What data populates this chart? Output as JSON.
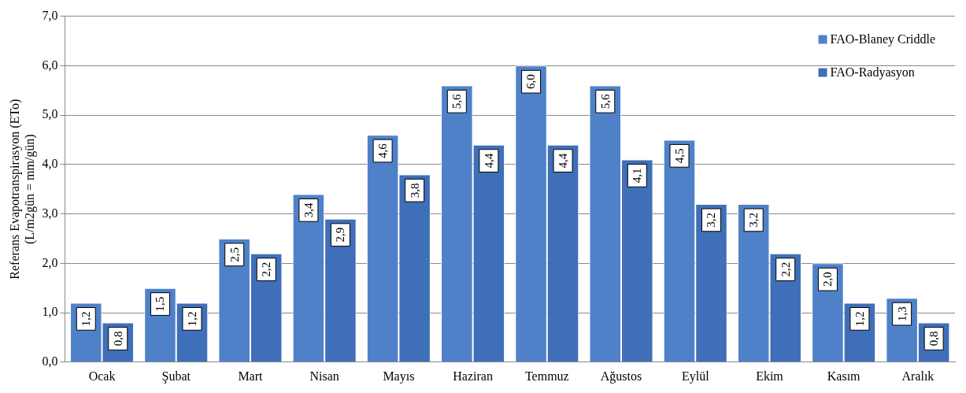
{
  "chart_data": {
    "type": "bar",
    "ylabel": "Referans Evapotranspirasyon (ETo)\n(L/m2gün = mm/gün)",
    "categories": [
      "Ocak",
      "Şubat",
      "Mart",
      "Nisan",
      "Mayıs",
      "Haziran",
      "Temmuz",
      "Ağustos",
      "Eylül",
      "Ekim",
      "Kasım",
      "Aralık"
    ],
    "series": [
      {
        "name": "FAO-Blaney Criddle",
        "color": "#4f81c9",
        "values": [
          1.2,
          1.5,
          2.5,
          3.4,
          4.6,
          5.6,
          6.0,
          5.6,
          4.5,
          3.2,
          2.0,
          1.3
        ],
        "value_labels": [
          "1,2",
          "1,5",
          "2,5",
          "3,4",
          "4,6",
          "5,6",
          "6,0",
          "5,6",
          "4,5",
          "3,2",
          "2,0",
          "1,3"
        ]
      },
      {
        "name": "FAO-Radyasyon",
        "color": "#3f6fb8",
        "values": [
          0.8,
          1.2,
          2.2,
          2.9,
          3.8,
          4.4,
          4.4,
          4.1,
          3.2,
          2.2,
          1.2,
          0.8
        ],
        "value_labels": [
          "0,8",
          "1,2",
          "2,2",
          "2,9",
          "3,8",
          "4,4",
          "4,4",
          "4,1",
          "3,2",
          "2,2",
          "1,2",
          "0,8"
        ]
      }
    ],
    "ylim": [
      0,
      7
    ],
    "yticks": [
      {
        "value": 0,
        "label": "0,0"
      },
      {
        "value": 1,
        "label": "1,0"
      },
      {
        "value": 2,
        "label": "2,0"
      },
      {
        "value": 3,
        "label": "3,0"
      },
      {
        "value": 4,
        "label": "4,0"
      },
      {
        "value": 5,
        "label": "5,0"
      },
      {
        "value": 6,
        "label": "6,0"
      },
      {
        "value": 7,
        "label": "7,0"
      }
    ],
    "grid": "y",
    "legend": "top right"
  }
}
